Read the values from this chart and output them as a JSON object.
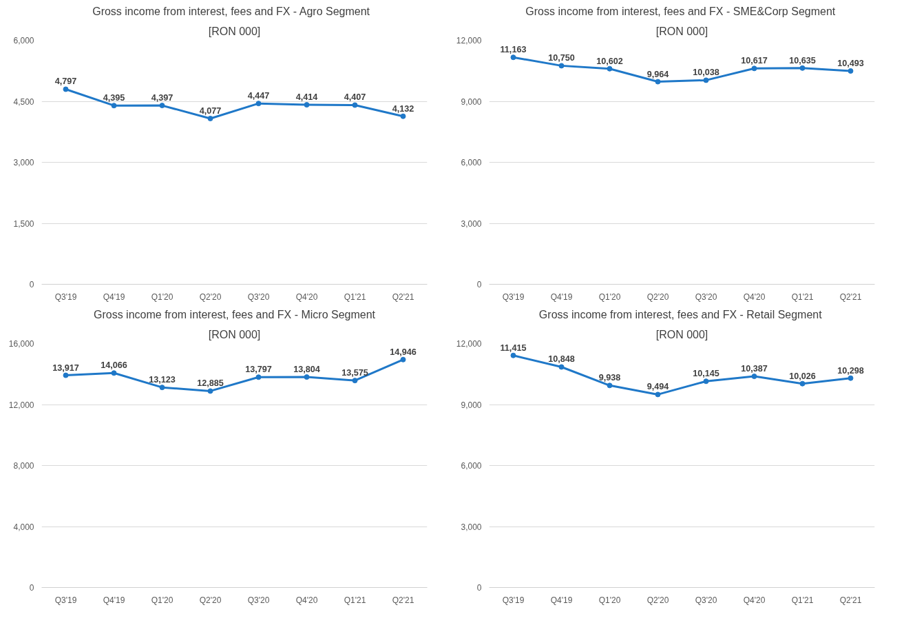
{
  "chart_data": [
    {
      "type": "line",
      "title": "Gross income from interest, fees and FX -   Agro Segment",
      "subtitle": "[RON 000]",
      "categories": [
        "Q3'19",
        "Q4'19",
        "Q1'20",
        "Q2'20",
        "Q3'20",
        "Q4'20",
        "Q1'21",
        "Q2'21"
      ],
      "series": [
        {
          "color": "#1f78c8",
          "values": [
            4797,
            4395,
            4397,
            4077,
            4447,
            4414,
            4407,
            4132
          ],
          "value_labels": [
            "4,797",
            "4,395",
            "4,397",
            "4,077",
            "4,447",
            "4,414",
            "4,407",
            "4,132"
          ]
        }
      ],
      "ylim": [
        0,
        6000
      ],
      "yticks": [
        {
          "value": 0,
          "label": "0"
        },
        {
          "value": 1500,
          "label": "1,500"
        },
        {
          "value": 3000,
          "label": "3,000"
        },
        {
          "value": 4500,
          "label": "4,500"
        },
        {
          "value": 6000,
          "label": "6,000"
        }
      ],
      "grid": "y",
      "marker": "circle",
      "line_style": "solid"
    },
    {
      "type": "line",
      "title": "Gross income from interest, fees and FX -  SME&Corp Segment",
      "subtitle": "[RON 000]",
      "categories": [
        "Q3'19",
        "Q4'19",
        "Q1'20",
        "Q2'20",
        "Q3'20",
        "Q4'20",
        "Q1'21",
        "Q2'21"
      ],
      "series": [
        {
          "color": "#1f78c8",
          "values": [
            11163,
            10750,
            10602,
            9964,
            10038,
            10617,
            10635,
            10493
          ],
          "value_labels": [
            "11,163",
            "10,750",
            "10,602",
            "9,964",
            "10,038",
            "10,617",
            "10,635",
            "10,493"
          ]
        }
      ],
      "ylim": [
        0,
        12000
      ],
      "yticks": [
        {
          "value": 0,
          "label": "0"
        },
        {
          "value": 3000,
          "label": "3,000"
        },
        {
          "value": 6000,
          "label": "6,000"
        },
        {
          "value": 9000,
          "label": "9,000"
        },
        {
          "value": 12000,
          "label": "12,000"
        }
      ],
      "grid": "y",
      "marker": "circle",
      "line_style": "solid"
    },
    {
      "type": "line",
      "title": "Gross income from interest, fees and FX - Micro Segment",
      "subtitle": "[RON 000]",
      "categories": [
        "Q3'19",
        "Q4'19",
        "Q1'20",
        "Q2'20",
        "Q3'20",
        "Q4'20",
        "Q1'21",
        "Q2'21"
      ],
      "series": [
        {
          "color": "#1f78c8",
          "values": [
            13917,
            14066,
            13123,
            12885,
            13797,
            13804,
            13575,
            14946
          ],
          "value_labels": [
            "13,917",
            "14,066",
            "13,123",
            "12,885",
            "13,797",
            "13,804",
            "13,575",
            "14,946"
          ]
        }
      ],
      "ylim": [
        0,
        16000
      ],
      "yticks": [
        {
          "value": 0,
          "label": "0"
        },
        {
          "value": 4000,
          "label": "4,000"
        },
        {
          "value": 8000,
          "label": "8,000"
        },
        {
          "value": 12000,
          "label": "12,000"
        },
        {
          "value": 16000,
          "label": "16,000"
        }
      ],
      "grid": "y",
      "marker": "circle",
      "line_style": "solid"
    },
    {
      "type": "line",
      "title": "Gross income from interest, fees and FX  - Retail Segment",
      "subtitle": "[RON 000]",
      "categories": [
        "Q3'19",
        "Q4'19",
        "Q1'20",
        "Q2'20",
        "Q3'20",
        "Q4'20",
        "Q1'21",
        "Q2'21"
      ],
      "series": [
        {
          "color": "#1f78c8",
          "values": [
            11415,
            10848,
            9938,
            9494,
            10145,
            10387,
            10026,
            10298
          ],
          "value_labels": [
            "11,415",
            "10,848",
            "9,938",
            "9,494",
            "10,145",
            "10,387",
            "10,026",
            "10,298"
          ]
        }
      ],
      "ylim": [
        0,
        12000
      ],
      "yticks": [
        {
          "value": 0,
          "label": "0"
        },
        {
          "value": 3000,
          "label": "3,000"
        },
        {
          "value": 6000,
          "label": "6,000"
        },
        {
          "value": 9000,
          "label": "9,000"
        },
        {
          "value": 12000,
          "label": "12,000"
        }
      ],
      "grid": "y",
      "marker": "circle",
      "line_style": "solid"
    }
  ]
}
